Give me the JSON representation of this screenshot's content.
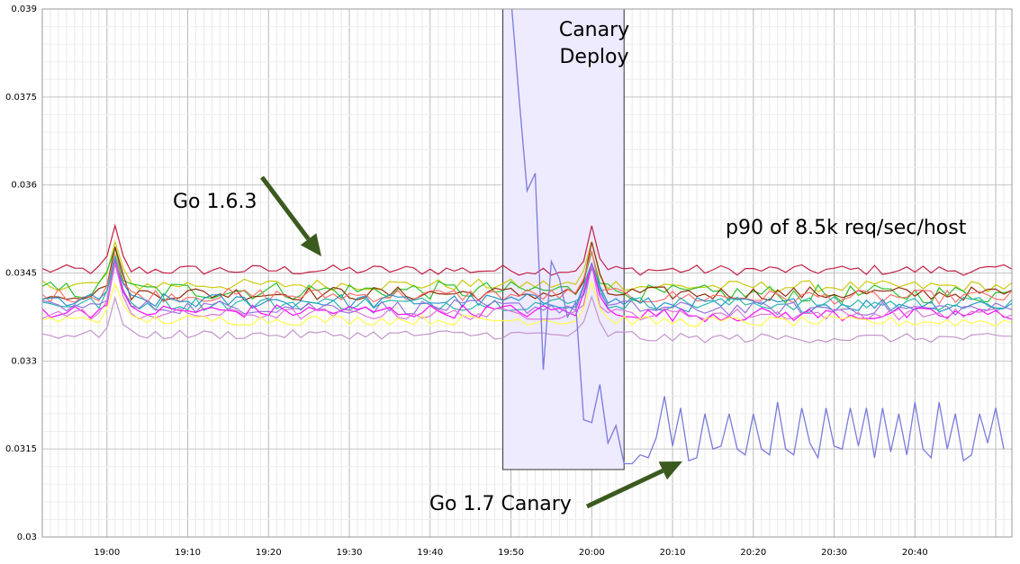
{
  "chart_data": {
    "type": "line",
    "title": "",
    "xlabel": "",
    "ylabel": "",
    "x_range": [
      "18:52",
      "20:52"
    ],
    "ylim": [
      0.03,
      0.039
    ],
    "grid": true,
    "legend": "none",
    "x_ticks": [
      {
        "t": "19:00",
        "label": "19:00"
      },
      {
        "t": "19:10",
        "label": "19:10"
      },
      {
        "t": "19:20",
        "label": "19:20"
      },
      {
        "t": "19:30",
        "label": "19:30"
      },
      {
        "t": "19:40",
        "label": "19:40"
      },
      {
        "t": "19:50",
        "label": "19:50"
      },
      {
        "t": "20:00",
        "label": "20:00"
      },
      {
        "t": "20:10",
        "label": "20:10"
      },
      {
        "t": "20:20",
        "label": "20:20"
      },
      {
        "t": "20:30",
        "label": "20:30"
      },
      {
        "t": "20:40",
        "label": "20:40"
      }
    ],
    "y_ticks": [
      {
        "v": 0.03,
        "label": "0.03"
      },
      {
        "v": 0.0315,
        "label": "0.0315"
      },
      {
        "v": 0.033,
        "label": "0.033"
      },
      {
        "v": 0.0345,
        "label": "0.0345"
      },
      {
        "v": 0.036,
        "label": "0.036"
      },
      {
        "v": 0.0375,
        "label": "0.0375"
      },
      {
        "v": 0.039,
        "label": "0.039"
      }
    ],
    "highlight_region": {
      "x_start": "19:49",
      "x_end": "20:04",
      "y_bottom": 0.03115,
      "y_top": 0.039,
      "fill": "#eeeaff",
      "stroke": "#333333"
    },
    "series": [
      {
        "color": "#c0143c",
        "base": 0.03455,
        "noise": 9e-05,
        "spike": 0.0007
      },
      {
        "color": "#c8c800",
        "base": 0.0343,
        "noise": 0.0001,
        "spike": 0.0007
      },
      {
        "color": "#22c022",
        "base": 0.0342,
        "noise": 0.00016,
        "spike": 0.0008
      },
      {
        "color": "#8b2500",
        "base": 0.03415,
        "noise": 0.00012,
        "spike": 0.0008
      },
      {
        "color": "#ff6a6a",
        "base": 0.03412,
        "noise": 0.00012,
        "spike": 0.0007
      },
      {
        "color": "#1e90c8",
        "base": 0.03402,
        "noise": 0.00013,
        "spike": 0.0007
      },
      {
        "color": "#20b2aa",
        "base": 0.03398,
        "noise": 0.00012,
        "spike": 0.0007
      },
      {
        "color": "#9370db",
        "base": 0.03392,
        "noise": 0.00012,
        "spike": 0.0008
      },
      {
        "color": "#ff00ff",
        "base": 0.03385,
        "noise": 0.00012,
        "spike": 0.0008
      },
      {
        "color": "#da70d6",
        "base": 0.0338,
        "noise": 0.0001,
        "spike": 0.0008
      },
      {
        "color": "#ffff40",
        "base": 0.0337,
        "noise": 9e-05,
        "spike": 0.0007
      },
      {
        "color": "#c090c8",
        "base": 0.03345,
        "noise": 8e-05,
        "spike": 0.0006
      }
    ],
    "canary_series": {
      "color": "#7a7adc",
      "points": [
        [
          "19:50",
          0.0392
        ],
        [
          "19:51",
          0.0375
        ],
        [
          "19:52",
          0.0359
        ],
        [
          "19:53",
          0.0362
        ],
        [
          "19:54",
          0.03285
        ],
        [
          "19:55",
          0.0347
        ],
        [
          "19:56",
          0.0344
        ],
        [
          "19:57",
          0.03375
        ],
        [
          "19:58",
          0.034
        ],
        [
          "19:59",
          0.032
        ],
        [
          "20:00",
          0.03195
        ],
        [
          "20:01",
          0.0326
        ],
        [
          "20:02",
          0.0316
        ],
        [
          "20:03",
          0.0319
        ],
        [
          "20:04",
          0.03125
        ],
        [
          "20:05",
          0.03125
        ],
        [
          "20:06",
          0.0314
        ],
        [
          "20:07",
          0.03135
        ],
        [
          "20:08",
          0.0317
        ],
        [
          "20:09",
          0.0324
        ],
        [
          "20:10",
          0.03155
        ],
        [
          "20:11",
          0.0322
        ],
        [
          "20:12",
          0.0313
        ],
        [
          "20:13",
          0.03135
        ],
        [
          "20:14",
          0.0321
        ],
        [
          "20:15",
          0.0315
        ],
        [
          "20:16",
          0.03155
        ],
        [
          "20:17",
          0.0321
        ],
        [
          "20:18",
          0.0315
        ],
        [
          "20:19",
          0.0314
        ],
        [
          "20:20",
          0.0321
        ],
        [
          "20:21",
          0.0315
        ],
        [
          "20:22",
          0.0314
        ],
        [
          "20:23",
          0.0323
        ],
        [
          "20:24",
          0.0315
        ],
        [
          "20:25",
          0.0314
        ],
        [
          "20:26",
          0.0322
        ],
        [
          "20:27",
          0.0316
        ],
        [
          "20:28",
          0.03135
        ],
        [
          "20:29",
          0.0322
        ],
        [
          "20:30",
          0.03155
        ],
        [
          "20:31",
          0.0315
        ],
        [
          "20:32",
          0.0322
        ],
        [
          "20:33",
          0.03155
        ],
        [
          "20:34",
          0.0322
        ],
        [
          "20:35",
          0.03135
        ],
        [
          "20:36",
          0.0322
        ],
        [
          "20:37",
          0.03145
        ],
        [
          "20:38",
          0.0321
        ],
        [
          "20:39",
          0.0314
        ],
        [
          "20:40",
          0.0323
        ],
        [
          "20:41",
          0.0315
        ],
        [
          "20:42",
          0.03135
        ],
        [
          "20:43",
          0.0323
        ],
        [
          "20:44",
          0.0315
        ],
        [
          "20:45",
          0.0321
        ],
        [
          "20:46",
          0.0313
        ],
        [
          "20:47",
          0.0314
        ],
        [
          "20:48",
          0.0321
        ],
        [
          "20:49",
          0.0316
        ],
        [
          "20:50",
          0.0322
        ],
        [
          "20:51",
          0.0315
        ]
      ]
    }
  },
  "annotations": {
    "go163_label": "Go 1.6.3",
    "go17_label": "Go 1.7 Canary",
    "canary_line1": "Canary",
    "canary_line2": "Deploy",
    "metric_label": "p90 of 8.5k req/sec/host",
    "arrow_color": "#3b5a1e"
  }
}
